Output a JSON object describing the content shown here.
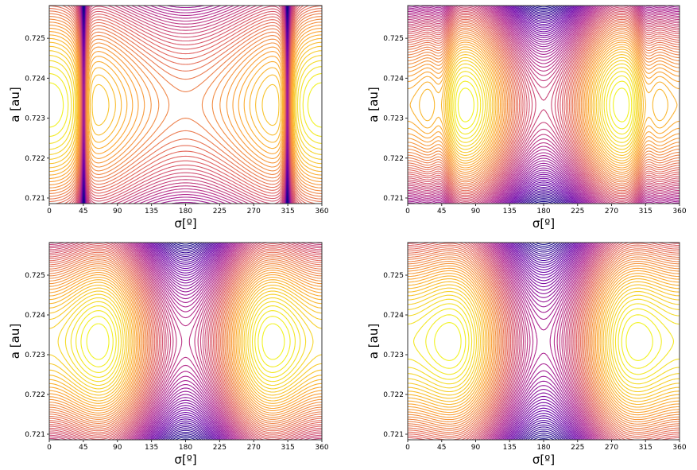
{
  "chart_data": [
    {
      "type": "contour",
      "panel": "top-left",
      "xlabel": "σ[º]",
      "ylabel": "a [au]",
      "xlim": [
        0,
        360
      ],
      "ylim": [
        0.72086,
        0.72582
      ],
      "xticks": [
        "0",
        "45",
        "90",
        "135",
        "180",
        "225",
        "270",
        "315",
        "360"
      ],
      "yticks": [
        "0.721",
        "0.722",
        "0.723",
        "0.724",
        "0.725"
      ],
      "colormap": "plasma (reversed)",
      "resonance_center_a": 0.72333,
      "libration_centers_deg": [
        0,
        75,
        285
      ],
      "saddle_deg": 180,
      "singular_lines_deg": [
        45,
        315
      ],
      "model": {
        "alpha": -1.0,
        "beta": 0.0,
        "pole": 0.12,
        "bump": 0.0
      }
    },
    {
      "type": "contour",
      "panel": "top-right",
      "xlabel": "σ[º]",
      "ylabel": "a [au]",
      "xlim": [
        0,
        360
      ],
      "ylim": [
        0.72086,
        0.72582
      ],
      "xticks": [
        "0",
        "45",
        "90",
        "135",
        "180",
        "225",
        "270",
        "315",
        "360"
      ],
      "yticks": [
        "0.721",
        "0.722",
        "0.723",
        "0.724",
        "0.725"
      ],
      "colormap": "plasma (reversed)",
      "resonance_center_a": 0.72333,
      "libration_centers_deg": [
        75,
        285
      ],
      "saddle_deg": 180,
      "model": {
        "alpha": -1.035,
        "beta": 1.0,
        "pole": 0.0,
        "bump": 0.6
      }
    },
    {
      "type": "contour",
      "panel": "bottom-left",
      "xlabel": "σ[º]",
      "ylabel": "a [au]",
      "xlim": [
        0,
        360
      ],
      "ylim": [
        0.72086,
        0.72582
      ],
      "xticks": [
        "0",
        "45",
        "90",
        "135",
        "180",
        "225",
        "270",
        "315",
        "360"
      ],
      "yticks": [
        "0.721",
        "0.722",
        "0.723",
        "0.724",
        "0.725"
      ],
      "colormap": "plasma (reversed)",
      "resonance_center_a": 0.72333,
      "libration_centers_deg": [
        65,
        295
      ],
      "saddle_deg": 180,
      "model": {
        "alpha": -1.69,
        "beta": 1.0,
        "pole": 0.0,
        "bump": 0.0
      }
    },
    {
      "type": "contour",
      "panel": "bottom-right",
      "xlabel": "σ[º]",
      "ylabel": "a [au]",
      "xlim": [
        0,
        360
      ],
      "ylim": [
        0.72086,
        0.72582
      ],
      "xticks": [
        "0",
        "45",
        "90",
        "135",
        "180",
        "225",
        "270",
        "315",
        "360"
      ],
      "yticks": [
        "0.721",
        "0.722",
        "0.723",
        "0.724",
        "0.725"
      ],
      "colormap": "plasma (reversed)",
      "resonance_center_a": 0.72333,
      "libration_centers_deg": [
        55,
        305
      ],
      "saddle_deg": 180,
      "model": {
        "alpha": -2.29,
        "beta": 1.0,
        "pole": 0.0,
        "bump": 0.0
      }
    }
  ]
}
